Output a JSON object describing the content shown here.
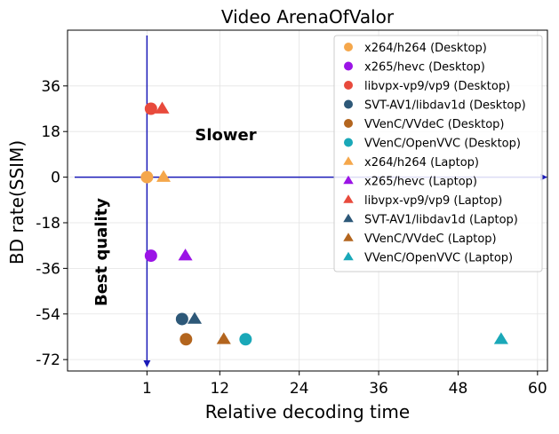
{
  "chart_data": {
    "type": "scatter",
    "title": "Video ArenaOfValor",
    "xlabel": "Relative decoding time",
    "ylabel": "BD rate(SSIM)",
    "xlim": [
      -11,
      61.5
    ],
    "ylim": [
      -76.5,
      58
    ],
    "xticks": [
      1,
      12,
      24,
      36,
      48,
      60
    ],
    "yticks": [
      36,
      18,
      0,
      -18,
      -36,
      -54,
      -72
    ],
    "grid": true,
    "legend_position": "top-right",
    "annotations": [
      {
        "text": "Slower"
      },
      {
        "text": "Best quality"
      }
    ],
    "reference_lines": {
      "x": 1,
      "y": 0,
      "color": "#1a1ab8"
    },
    "series": [
      {
        "name": "x264/h264 (Desktop)",
        "marker": "circle",
        "color": "#f5a74b",
        "points": [
          [
            1.0,
            0.0
          ]
        ]
      },
      {
        "name": "x265/hevc (Desktop)",
        "marker": "circle",
        "color": "#9b14e6",
        "points": [
          [
            1.6,
            -31.0
          ]
        ]
      },
      {
        "name": "libvpx-vp9/vp9 (Desktop)",
        "marker": "circle",
        "color": "#e84a3c",
        "points": [
          [
            1.6,
            27.0
          ]
        ]
      },
      {
        "name": "SVT-AV1/libdav1d (Desktop)",
        "marker": "circle",
        "color": "#2d5878",
        "points": [
          [
            6.3,
            -56.0
          ]
        ]
      },
      {
        "name": "VVenC/VVdeC (Desktop)",
        "marker": "circle",
        "color": "#b3651e",
        "points": [
          [
            6.9,
            -64.0
          ]
        ]
      },
      {
        "name": "VVenC/OpenVVC (Desktop)",
        "marker": "circle",
        "color": "#1aa8b8",
        "points": [
          [
            15.9,
            -64.0
          ]
        ]
      },
      {
        "name": "x264/h264 (Laptop)",
        "marker": "triangle",
        "color": "#f5a74b",
        "points": [
          [
            3.5,
            0.0
          ]
        ]
      },
      {
        "name": "x265/hevc (Laptop)",
        "marker": "triangle",
        "color": "#9b14e6",
        "points": [
          [
            6.8,
            -31.0
          ]
        ]
      },
      {
        "name": "libvpx-vp9/vp9 (Laptop)",
        "marker": "triangle",
        "color": "#e84a3c",
        "points": [
          [
            3.3,
            27.0
          ]
        ]
      },
      {
        "name": "SVT-AV1/libdav1d (Laptop)",
        "marker": "triangle",
        "color": "#2d5878",
        "points": [
          [
            8.2,
            -56.0
          ]
        ]
      },
      {
        "name": "VVenC/VVdeC (Laptop)",
        "marker": "triangle",
        "color": "#b3651e",
        "points": [
          [
            12.6,
            -64.0
          ]
        ]
      },
      {
        "name": "VVenC/OpenVVC (Laptop)",
        "marker": "triangle",
        "color": "#1aa8b8",
        "points": [
          [
            54.5,
            -64.0
          ]
        ]
      }
    ]
  }
}
